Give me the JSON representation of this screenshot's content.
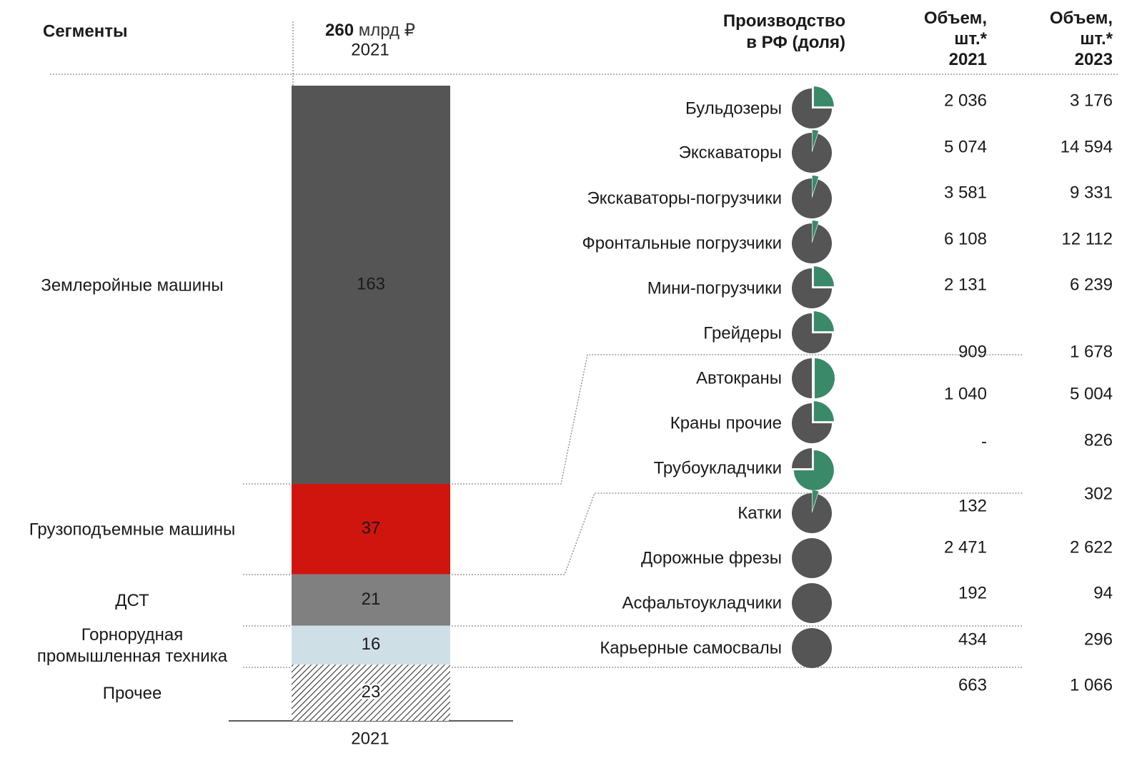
{
  "chart_data": {
    "type": "stacked-bar",
    "header": "Сегменты",
    "total": 260,
    "unit": "млрд ₽",
    "year": "2021",
    "x_label": "2021",
    "categories": [
      "Землеройные машины",
      "Грузоподъемные машины",
      "ДСТ",
      "Горнорудная\nпромышленная техника",
      "Прочее"
    ],
    "values": [
      163,
      37,
      21,
      16,
      23
    ],
    "colors": [
      "#555555",
      "#d0150f",
      "#808080",
      "#cfdfe6",
      "hatch"
    ]
  },
  "table": {
    "production_header": "Производство\nв РФ (доля)",
    "volume_2021_header": "Объем,\nшт.*\n2021",
    "volume_2023_header": "Объем,\nшт.*\n2023",
    "share_color": "#3a8a6a",
    "rest_color": "#555555",
    "rows": [
      {
        "name": "Бульдозеры",
        "share": 25,
        "v2021": "2 036",
        "v2023": "3 176"
      },
      {
        "name": "Экскаваторы",
        "share": 5,
        "v2021": "5 074",
        "v2023": "14 594"
      },
      {
        "name": "Экскаваторы-погрузчики",
        "share": 5,
        "v2021": "3 581",
        "v2023": "9 331"
      },
      {
        "name": "Фронтальные погрузчики",
        "share": 5,
        "v2021": "6 108",
        "v2023": "12 112"
      },
      {
        "name": "Мини-погрузчики",
        "share": 25,
        "v2021": "2 131",
        "v2023": "6 239"
      },
      {
        "name": "Грейдеры",
        "share": 25,
        "v2021": "909",
        "v2023": "1 678"
      },
      {
        "name": "Автокраны",
        "share": 50,
        "v2021": "1 040",
        "v2023": "5 004"
      },
      {
        "name": "Краны прочие",
        "share": 25,
        "v2021": "-",
        "v2023": "826"
      },
      {
        "name": "Трубоукладчики",
        "share": 75,
        "v2021": "132",
        "v2023": "302"
      },
      {
        "name": "Катки",
        "share": 5,
        "v2021": "2 471",
        "v2023": "2 622"
      },
      {
        "name": "Дорожные фрезы",
        "share": 0,
        "v2021": "192",
        "v2023": "94"
      },
      {
        "name": "Асфальтоукладчики",
        "share": 0,
        "v2021": "434",
        "v2023": "296"
      },
      {
        "name": "Карьерные самосвалы",
        "share": 0,
        "v2021": "663",
        "v2023": "1 066"
      }
    ]
  }
}
